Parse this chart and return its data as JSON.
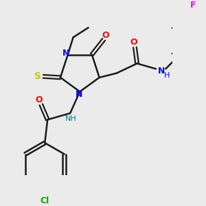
{
  "bg_color": "#ebebeb",
  "bond_color": "#1a1a1a",
  "bond_width": 1.8,
  "figsize": [
    3.0,
    3.0
  ],
  "dpi": 100,
  "colors": {
    "N": "#0000ff",
    "O": "#ff0000",
    "S": "#cccc00",
    "F": "#ff00ff",
    "Cl": "#00aa00",
    "NH": "#0000ff",
    "NH_teal": "#008080",
    "C": "#1a1a1a"
  }
}
